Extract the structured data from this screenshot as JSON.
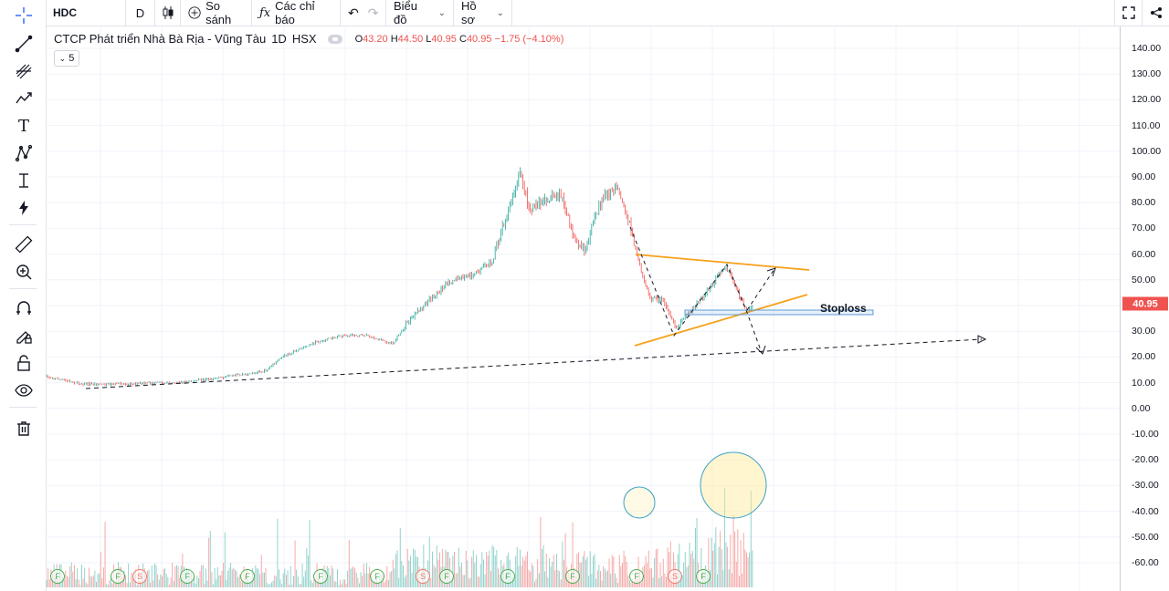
{
  "toolbar": {
    "symbol": "HDC",
    "interval": "D",
    "compare_label": "So sánh",
    "indicators_label": "Các chỉ báo",
    "chart_menu_label": "Biểu đồ",
    "profile_menu_label": "Hồ sơ"
  },
  "legend": {
    "title": "CTCP Phát triển Nhà Bà Rịa - Vũng Tàu",
    "interval": "1D",
    "exchange": "HSX",
    "open_key": "O",
    "open": "43.20",
    "high_key": "H",
    "high": "44.50",
    "low_key": "L",
    "low": "40.95",
    "close_key": "C",
    "close": "40.95",
    "change": "−1.75 (−4.10%)",
    "indicator_count": "5"
  },
  "price_axis": {
    "ticks": [
      "140.00",
      "130.00",
      "120.00",
      "110.00",
      "100.00",
      "90.00",
      "80.00",
      "70.00",
      "60.00",
      "50.00",
      "40.00",
      "30.00",
      "20.00",
      "10.00",
      "0.00",
      "-10.00",
      "-20.00",
      "-30.00",
      "-40.00",
      "-50.00",
      "-60.00"
    ],
    "last_price": "40.95"
  },
  "annotations": {
    "stoploss_label": "Stoploss"
  },
  "events": {
    "dividend_letter": "F",
    "split_letter": "S"
  },
  "colors": {
    "up": "#26a69a",
    "down": "#ef5350",
    "trendline_orange": "#f7a11a",
    "stoploss_box": "#5b9bd5",
    "volume_circle": "#1e88e5"
  },
  "icons": {
    "left_toolbar": [
      "crosshair-icon",
      "trend-line-icon",
      "pitchfork-icon",
      "patterns-icon",
      "text-icon",
      "prediction-icon",
      "measure-icon",
      "lightning-icon",
      "ruler-icon",
      "zoom-in-icon",
      "magnet-icon",
      "lock-drawing-icon",
      "lock-icon",
      "eye-icon",
      "trash-icon"
    ]
  }
}
